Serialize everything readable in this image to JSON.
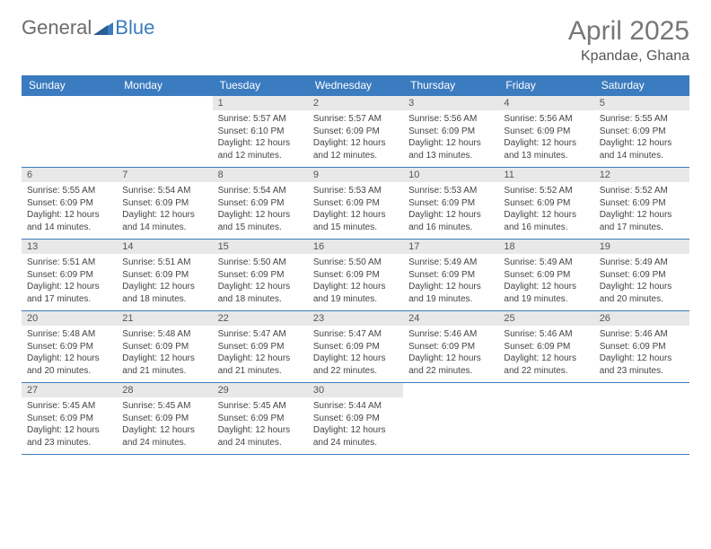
{
  "logo": {
    "part1": "General",
    "part2": "Blue"
  },
  "title": "April 2025",
  "location": "Kpandae, Ghana",
  "colors": {
    "header_bg": "#3b7bbf",
    "header_text": "#ffffff",
    "daynum_bg": "#e8e8e8",
    "border": "#3b7bbf",
    "text": "#444444",
    "title_color": "#777777"
  },
  "weekdays": [
    "Sunday",
    "Monday",
    "Tuesday",
    "Wednesday",
    "Thursday",
    "Friday",
    "Saturday"
  ],
  "weeks": [
    [
      null,
      null,
      {
        "n": "1",
        "sr": "5:57 AM",
        "ss": "6:10 PM",
        "dl": "12 hours and 12 minutes."
      },
      {
        "n": "2",
        "sr": "5:57 AM",
        "ss": "6:09 PM",
        "dl": "12 hours and 12 minutes."
      },
      {
        "n": "3",
        "sr": "5:56 AM",
        "ss": "6:09 PM",
        "dl": "12 hours and 13 minutes."
      },
      {
        "n": "4",
        "sr": "5:56 AM",
        "ss": "6:09 PM",
        "dl": "12 hours and 13 minutes."
      },
      {
        "n": "5",
        "sr": "5:55 AM",
        "ss": "6:09 PM",
        "dl": "12 hours and 14 minutes."
      }
    ],
    [
      {
        "n": "6",
        "sr": "5:55 AM",
        "ss": "6:09 PM",
        "dl": "12 hours and 14 minutes."
      },
      {
        "n": "7",
        "sr": "5:54 AM",
        "ss": "6:09 PM",
        "dl": "12 hours and 14 minutes."
      },
      {
        "n": "8",
        "sr": "5:54 AM",
        "ss": "6:09 PM",
        "dl": "12 hours and 15 minutes."
      },
      {
        "n": "9",
        "sr": "5:53 AM",
        "ss": "6:09 PM",
        "dl": "12 hours and 15 minutes."
      },
      {
        "n": "10",
        "sr": "5:53 AM",
        "ss": "6:09 PM",
        "dl": "12 hours and 16 minutes."
      },
      {
        "n": "11",
        "sr": "5:52 AM",
        "ss": "6:09 PM",
        "dl": "12 hours and 16 minutes."
      },
      {
        "n": "12",
        "sr": "5:52 AM",
        "ss": "6:09 PM",
        "dl": "12 hours and 17 minutes."
      }
    ],
    [
      {
        "n": "13",
        "sr": "5:51 AM",
        "ss": "6:09 PM",
        "dl": "12 hours and 17 minutes."
      },
      {
        "n": "14",
        "sr": "5:51 AM",
        "ss": "6:09 PM",
        "dl": "12 hours and 18 minutes."
      },
      {
        "n": "15",
        "sr": "5:50 AM",
        "ss": "6:09 PM",
        "dl": "12 hours and 18 minutes."
      },
      {
        "n": "16",
        "sr": "5:50 AM",
        "ss": "6:09 PM",
        "dl": "12 hours and 19 minutes."
      },
      {
        "n": "17",
        "sr": "5:49 AM",
        "ss": "6:09 PM",
        "dl": "12 hours and 19 minutes."
      },
      {
        "n": "18",
        "sr": "5:49 AM",
        "ss": "6:09 PM",
        "dl": "12 hours and 19 minutes."
      },
      {
        "n": "19",
        "sr": "5:49 AM",
        "ss": "6:09 PM",
        "dl": "12 hours and 20 minutes."
      }
    ],
    [
      {
        "n": "20",
        "sr": "5:48 AM",
        "ss": "6:09 PM",
        "dl": "12 hours and 20 minutes."
      },
      {
        "n": "21",
        "sr": "5:48 AM",
        "ss": "6:09 PM",
        "dl": "12 hours and 21 minutes."
      },
      {
        "n": "22",
        "sr": "5:47 AM",
        "ss": "6:09 PM",
        "dl": "12 hours and 21 minutes."
      },
      {
        "n": "23",
        "sr": "5:47 AM",
        "ss": "6:09 PM",
        "dl": "12 hours and 22 minutes."
      },
      {
        "n": "24",
        "sr": "5:46 AM",
        "ss": "6:09 PM",
        "dl": "12 hours and 22 minutes."
      },
      {
        "n": "25",
        "sr": "5:46 AM",
        "ss": "6:09 PM",
        "dl": "12 hours and 22 minutes."
      },
      {
        "n": "26",
        "sr": "5:46 AM",
        "ss": "6:09 PM",
        "dl": "12 hours and 23 minutes."
      }
    ],
    [
      {
        "n": "27",
        "sr": "5:45 AM",
        "ss": "6:09 PM",
        "dl": "12 hours and 23 minutes."
      },
      {
        "n": "28",
        "sr": "5:45 AM",
        "ss": "6:09 PM",
        "dl": "12 hours and 24 minutes."
      },
      {
        "n": "29",
        "sr": "5:45 AM",
        "ss": "6:09 PM",
        "dl": "12 hours and 24 minutes."
      },
      {
        "n": "30",
        "sr": "5:44 AM",
        "ss": "6:09 PM",
        "dl": "12 hours and 24 minutes."
      },
      null,
      null,
      null
    ]
  ],
  "labels": {
    "sunrise": "Sunrise:",
    "sunset": "Sunset:",
    "daylight": "Daylight:"
  }
}
